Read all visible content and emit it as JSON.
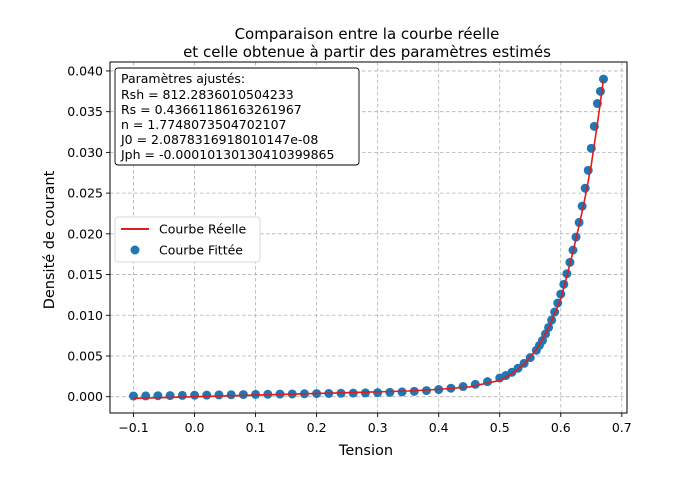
{
  "chart_data": {
    "type": "line",
    "title": [
      "Comparaison entre la courbe réelle",
      "et celle obtenue à partir des paramètres estimés"
    ],
    "xlabel": "Tension",
    "ylabel": "Densité de courant",
    "xlim": [
      -0.1385,
      0.7085
    ],
    "ylim": [
      -0.002,
      0.0411
    ],
    "x_ticks": [
      -0.1,
      0.0,
      0.1,
      0.2,
      0.3,
      0.4,
      0.5,
      0.6,
      0.7
    ],
    "x_tick_labels": [
      "−0.1",
      "0.0",
      "0.1",
      "0.2",
      "0.3",
      "0.4",
      "0.5",
      "0.6",
      "0.7"
    ],
    "y_ticks": [
      0.0,
      0.005,
      0.01,
      0.015,
      0.02,
      0.025,
      0.03,
      0.035,
      0.04
    ],
    "y_tick_labels": [
      "0.000",
      "0.005",
      "0.010",
      "0.015",
      "0.020",
      "0.025",
      "0.030",
      "0.035",
      "0.040"
    ],
    "grid": true,
    "legend_position": "center-left",
    "annotation": {
      "position": "top-left",
      "lines": [
        "Paramètres ajustés:",
        "Rsh = 812.2836010504233",
        "Rs = 0.43661186163261967",
        "n = 1.7748073504702107",
        "J0 = 2.0878316918010147e-08",
        "Jph = -0.00010130130410399865"
      ]
    },
    "series": [
      {
        "name": "Courbe Réelle",
        "kind": "line",
        "color": "#e41a1c",
        "x": [
          -0.1,
          -0.05,
          0.0,
          0.05,
          0.1,
          0.15,
          0.2,
          0.25,
          0.3,
          0.35,
          0.4,
          0.45,
          0.5,
          0.52,
          0.54,
          0.56,
          0.58,
          0.6,
          0.61,
          0.62,
          0.63,
          0.64,
          0.65,
          0.66,
          0.67
        ],
        "y": [
          -0.0002,
          -0.0001,
          0.0,
          0.0001,
          0.0002,
          0.0003,
          0.0004,
          0.0005,
          0.0006,
          0.0007,
          0.0009,
          0.0012,
          0.002,
          0.0028,
          0.004,
          0.0058,
          0.0084,
          0.012,
          0.0148,
          0.0178,
          0.021,
          0.0245,
          0.0285,
          0.0335,
          0.039
        ]
      },
      {
        "name": "Courbe Fittée",
        "kind": "scatter",
        "color": "#1f77b4",
        "x": [
          -0.1,
          -0.08,
          -0.06,
          -0.04,
          -0.02,
          0.0,
          0.02,
          0.04,
          0.06,
          0.08,
          0.1,
          0.12,
          0.14,
          0.16,
          0.18,
          0.2,
          0.22,
          0.24,
          0.26,
          0.28,
          0.3,
          0.32,
          0.34,
          0.36,
          0.38,
          0.4,
          0.42,
          0.44,
          0.46,
          0.48,
          0.5,
          0.51,
          0.52,
          0.53,
          0.54,
          0.55,
          0.56,
          0.565,
          0.57,
          0.575,
          0.58,
          0.585,
          0.59,
          0.595,
          0.6,
          0.605,
          0.61,
          0.615,
          0.62,
          0.625,
          0.63,
          0.635,
          0.64,
          0.645,
          0.65,
          0.655,
          0.66,
          0.665,
          0.67
        ],
        "y": [
          8e-05,
          0.0001,
          0.00012,
          0.00014,
          0.00016,
          0.00018,
          0.0002,
          0.00022,
          0.00024,
          0.00026,
          0.00028,
          0.0003,
          0.00032,
          0.00034,
          0.00036,
          0.00038,
          0.0004,
          0.00042,
          0.00044,
          0.00047,
          0.0005,
          0.00054,
          0.00059,
          0.00066,
          0.00075,
          0.00088,
          0.00104,
          0.00125,
          0.00152,
          0.00185,
          0.0023,
          0.0026,
          0.003,
          0.0035,
          0.0041,
          0.0048,
          0.0057,
          0.0063,
          0.0069,
          0.0077,
          0.0085,
          0.0094,
          0.0104,
          0.0115,
          0.0126,
          0.0138,
          0.0151,
          0.0165,
          0.018,
          0.0196,
          0.0214,
          0.0234,
          0.0256,
          0.0278,
          0.0305,
          0.0332,
          0.036,
          0.0375,
          0.039
        ]
      }
    ]
  }
}
